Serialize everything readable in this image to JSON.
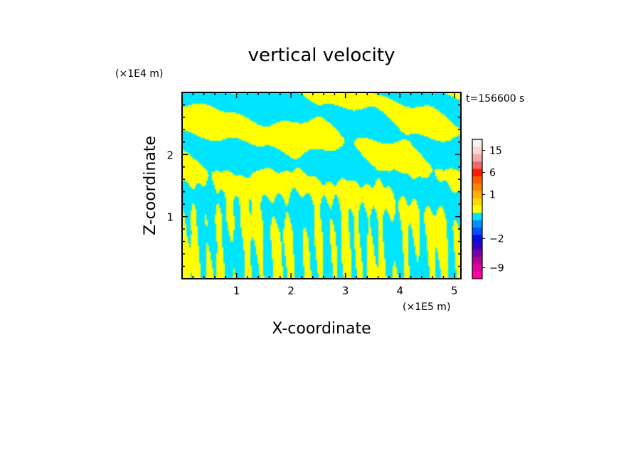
{
  "chart_data": {
    "type": "heatmap",
    "title": "vertical velocity",
    "xlabel": "X-coordinate",
    "ylabel": "Z-coordinate",
    "x_unit": "(×1E5 m)",
    "y_unit": "(×1E4 m)",
    "time_label": "t=156600 s",
    "xlim": [
      0,
      5.12
    ],
    "ylim": [
      0,
      3.0
    ],
    "x_ticks": [
      1,
      2,
      3,
      4,
      5
    ],
    "y_ticks": [
      1,
      2
    ],
    "x_tick_labels": [
      "1",
      "2",
      "3",
      "4",
      "5"
    ],
    "y_tick_labels": [
      "1",
      "2"
    ],
    "field_colors": {
      "positive": "#ffff00",
      "negative": "#00e5ff"
    },
    "colorbar": {
      "levels": [
        {
          "value": -12,
          "color": "#ff00a8"
        },
        {
          "value": -9,
          "color": "#e0009c"
        },
        {
          "value": -6,
          "color": "#b8009c"
        },
        {
          "value": -4,
          "color": "#7a00a8"
        },
        {
          "value": -3,
          "color": "#3a00c8"
        },
        {
          "value": -2,
          "color": "#0010e0"
        },
        {
          "value": -1.5,
          "color": "#0050ff"
        },
        {
          "value": -1,
          "color": "#0090ff"
        },
        {
          "value": -0.5,
          "color": "#00e5ff"
        },
        {
          "value": 0,
          "color": "#ffff00"
        },
        {
          "value": 0.5,
          "color": "#ffd800"
        },
        {
          "value": 1,
          "color": "#ffb000"
        },
        {
          "value": 2,
          "color": "#ff8400"
        },
        {
          "value": 4,
          "color": "#ff5a00"
        },
        {
          "value": 6,
          "color": "#ff1a00"
        },
        {
          "value": 9,
          "color": "#ef6a6a"
        },
        {
          "value": 12,
          "color": "#f7a9a9"
        },
        {
          "value": 15,
          "color": "#fbd4d4"
        },
        {
          "value": 20,
          "color": "#fdeeee"
        }
      ],
      "labels": [
        "15",
        "6",
        "1",
        "−2",
        "−9"
      ]
    }
  }
}
